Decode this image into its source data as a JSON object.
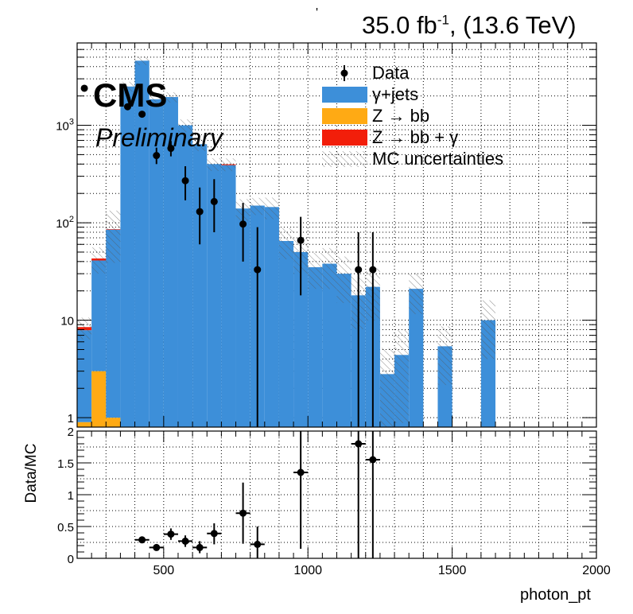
{
  "header": {
    "lumi_value": "35.0 fb",
    "lumi_exp": "-1",
    "lumi_energy": ", (13.6 TeV)",
    "stray_mark": "'"
  },
  "labels": {
    "experiment": "CMS",
    "status": "Preliminary"
  },
  "legend": {
    "items": [
      {
        "label": "Data",
        "kind": "marker"
      },
      {
        "label": "γ+jets",
        "kind": "fill",
        "color": "#3d8fd9"
      },
      {
        "label": "Z → bb",
        "kind": "fill",
        "color": "#ffaa14"
      },
      {
        "label": "Z → bb + γ",
        "kind": "fill",
        "color": "#f21e0a"
      },
      {
        "label": "MC uncertainties",
        "kind": "hatch"
      }
    ]
  },
  "chart_data": {
    "type": "bar",
    "subtype": "stacked histogram with data points and ratio panel",
    "bin_width": 50,
    "top_panel": {
      "yscale": "log",
      "ylim": [
        0.8,
        7000
      ],
      "yticks": [
        1,
        10,
        100,
        1000
      ],
      "ytick_labels": [
        "1",
        "10",
        "10^2",
        "10^3"
      ],
      "xlim": [
        200,
        2000
      ],
      "bins": [
        {
          "x0": 200,
          "gjets": 7.0,
          "zbb": 0.9,
          "zbbg": 0.6,
          "unc": 0.25
        },
        {
          "x0": 250,
          "gjets": 38,
          "zbb": 3,
          "zbbg": 2,
          "unc": 0.3
        },
        {
          "x0": 300,
          "gjets": 84,
          "zbb": 1,
          "zbbg": 1,
          "unc": 0.55
        },
        {
          "x0": 350,
          "gjets": 2500,
          "zbb": 0,
          "zbbg": 0,
          "unc": 0.12
        },
        {
          "x0": 400,
          "gjets": 4600,
          "zbb": 0,
          "zbbg": 0,
          "unc": 0.1
        },
        {
          "x0": 450,
          "gjets": 1850,
          "zbb": 0,
          "zbbg": 0,
          "unc": 0.12
        },
        {
          "x0": 500,
          "gjets": 1950,
          "zbb": 0,
          "zbbg": 0,
          "unc": 0.12
        },
        {
          "x0": 550,
          "gjets": 1000,
          "zbb": 0,
          "zbbg": 0,
          "unc": 0.15
        },
        {
          "x0": 600,
          "gjets": 640,
          "zbb": 0,
          "zbbg": 0,
          "unc": 0.15
        },
        {
          "x0": 650,
          "gjets": 400,
          "zbb": 0,
          "zbbg": 0,
          "unc": 0.15
        },
        {
          "x0": 700,
          "gjets": 390,
          "zbb": 0,
          "zbbg": 8,
          "unc": 0.15
        },
        {
          "x0": 750,
          "gjets": 140,
          "zbb": 0,
          "zbbg": 0,
          "unc": 0.25
        },
        {
          "x0": 800,
          "gjets": 150,
          "zbb": 0,
          "zbbg": 0,
          "unc": 0.2
        },
        {
          "x0": 850,
          "gjets": 145,
          "zbb": 0,
          "zbbg": 0,
          "unc": 0.25
        },
        {
          "x0": 900,
          "gjets": 65,
          "zbb": 0,
          "zbbg": 0,
          "unc": 0.35
        },
        {
          "x0": 950,
          "gjets": 50,
          "zbb": 0,
          "zbbg": 0,
          "unc": 0.4
        },
        {
          "x0": 1000,
          "gjets": 35,
          "zbb": 0,
          "zbbg": 0,
          "unc": 0.4
        },
        {
          "x0": 1050,
          "gjets": 38,
          "zbb": 0,
          "zbbg": 0,
          "unc": 0.45
        },
        {
          "x0": 1100,
          "gjets": 30,
          "zbb": 0,
          "zbbg": 0,
          "unc": 0.5
        },
        {
          "x0": 1150,
          "gjets": 18,
          "zbb": 0,
          "zbbg": 0,
          "unc": 0.55
        },
        {
          "x0": 1200,
          "gjets": 22,
          "zbb": 0,
          "zbbg": 0,
          "unc": 0.55
        },
        {
          "x0": 1250,
          "gjets": 2.8,
          "zbb": 0,
          "zbbg": 0,
          "unc": 0.85
        },
        {
          "x0": 1300,
          "gjets": 4.4,
          "zbb": 0,
          "zbbg": 0,
          "unc": 0.8
        },
        {
          "x0": 1350,
          "gjets": 21,
          "zbb": 0,
          "zbbg": 0,
          "unc": 0.45
        },
        {
          "x0": 1400,
          "gjets": 0,
          "zbb": 0,
          "zbbg": 0,
          "unc": 0
        },
        {
          "x0": 1450,
          "gjets": 5.4,
          "zbb": 0,
          "zbbg": 0,
          "unc": 0.6
        },
        {
          "x0": 1500,
          "gjets": 0,
          "zbb": 0,
          "zbbg": 0,
          "unc": 0
        },
        {
          "x0": 1550,
          "gjets": 0,
          "zbb": 0,
          "zbbg": 0,
          "unc": 0
        },
        {
          "x0": 1600,
          "gjets": 10,
          "zbb": 0,
          "zbbg": 0,
          "unc": 0.6
        }
      ],
      "data_points": [
        {
          "x": 225,
          "y": 2400,
          "yerr": [
            2300,
            2500
          ]
        },
        {
          "x": 375,
          "y": 1550,
          "yerr": [
            1470,
            1630
          ]
        },
        {
          "x": 425,
          "y": 1300,
          "yerr": [
            1220,
            1380
          ]
        },
        {
          "x": 475,
          "y": 490,
          "yerr": [
            400,
            590
          ]
        },
        {
          "x": 525,
          "y": 580,
          "yerr": [
            480,
            690
          ]
        },
        {
          "x": 575,
          "y": 270,
          "yerr": [
            170,
            380
          ]
        },
        {
          "x": 625,
          "y": 130,
          "yerr": [
            60,
            230
          ]
        },
        {
          "x": 675,
          "y": 165,
          "yerr": [
            80,
            280
          ]
        },
        {
          "x": 775,
          "y": 97,
          "yerr": [
            40,
            160
          ]
        },
        {
          "x": 825,
          "y": 33,
          "yerr": [
            0.8,
            90
          ]
        },
        {
          "x": 975,
          "y": 66,
          "yerr": [
            18,
            115
          ]
        },
        {
          "x": 1175,
          "y": 33,
          "yerr": [
            0.8,
            80
          ]
        },
        {
          "x": 1225,
          "y": 33,
          "yerr": [
            0.8,
            80
          ]
        }
      ]
    },
    "ratio_panel": {
      "ylabel": "Data/MC",
      "ylim": [
        0,
        2
      ],
      "yticks": [
        0,
        0.5,
        1,
        1.5,
        2
      ],
      "ytick_labels": [
        "0",
        "0.5",
        "1",
        "1.5",
        "2"
      ],
      "points": [
        {
          "x": 425,
          "y": 0.29,
          "yerr": [
            0.24,
            0.34
          ]
        },
        {
          "x": 475,
          "y": 0.17,
          "yerr": [
            0.13,
            0.21
          ]
        },
        {
          "x": 525,
          "y": 0.38,
          "yerr": [
            0.29,
            0.47
          ]
        },
        {
          "x": 575,
          "y": 0.27,
          "yerr": [
            0.18,
            0.36
          ]
        },
        {
          "x": 625,
          "y": 0.17,
          "yerr": [
            0.08,
            0.27
          ]
        },
        {
          "x": 675,
          "y": 0.39,
          "yerr": [
            0.22,
            0.55
          ]
        },
        {
          "x": 775,
          "y": 0.71,
          "yerr": [
            0.23,
            1.19
          ]
        },
        {
          "x": 825,
          "y": 0.22,
          "yerr": [
            0,
            0.5
          ]
        },
        {
          "x": 975,
          "y": 1.35,
          "yerr": [
            0.15,
            2.0
          ]
        },
        {
          "x": 1175,
          "y": 1.8,
          "yerr": [
            0,
            2.0
          ]
        },
        {
          "x": 1225,
          "y": 1.55,
          "yerr": [
            0,
            2.0
          ]
        }
      ]
    },
    "xaxis": {
      "xlabel": "photon_pt",
      "xlim": [
        200,
        2000
      ],
      "xticks": [
        500,
        1000,
        1500,
        2000
      ],
      "xtick_labels": [
        "500",
        "1000",
        "1500",
        "2000"
      ]
    },
    "grid": true
  }
}
